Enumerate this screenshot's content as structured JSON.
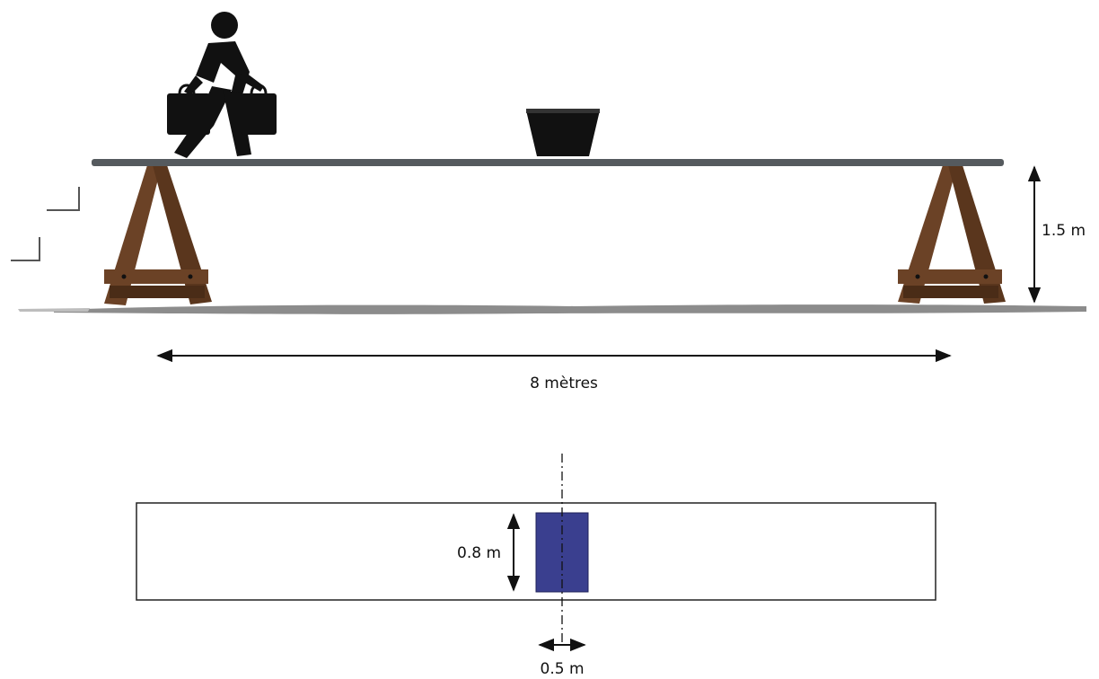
{
  "labels": {
    "height": "1.5 m",
    "span": "8 mètres",
    "width": "0.8 m",
    "depth": "0.5 m"
  },
  "icons": [
    "person-with-bags-icon",
    "bucket-icon",
    "sawhorse-icon"
  ],
  "colors": {
    "plank": "#555a5e",
    "wood": "#6b4226",
    "wood_dark": "#4a2c17",
    "ground": "#8c8c8c",
    "block": "#3a3f8f",
    "figure": "#111111"
  }
}
